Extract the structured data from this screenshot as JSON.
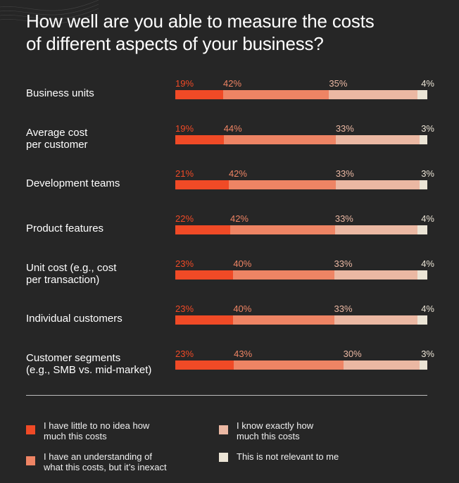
{
  "title_lines": [
    "How well are you able to measure the costs",
    "of different aspects of your business?"
  ],
  "colors": {
    "background": "#262626",
    "little_idea": "#f04a26",
    "understanding": "#ee8464",
    "exactly": "#ebb8a3",
    "not_relevant": "#ebe4d5"
  },
  "legend": [
    {
      "key": "little_idea",
      "lines": [
        "I have little to no idea how",
        "much this costs"
      ]
    },
    {
      "key": "exactly",
      "lines": [
        "I know exactly how",
        "much this costs"
      ]
    },
    {
      "key": "understanding",
      "lines": [
        "I have an understanding of",
        "what this costs, but it’s inexact"
      ]
    },
    {
      "key": "not_relevant",
      "lines": [
        "This is not relevant to me"
      ]
    }
  ],
  "chart_data": {
    "type": "bar",
    "orientation": "horizontal",
    "stacked": true,
    "title": "How well are you able to measure the costs of different aspects of your business?",
    "categories": [
      [
        "Business units"
      ],
      [
        "Average cost",
        "per customer"
      ],
      [
        "Development teams"
      ],
      [
        "Product features"
      ],
      [
        "Unit cost (e.g., cost",
        "per transaction)"
      ],
      [
        "Individual customers"
      ],
      [
        "Customer segments",
        "(e.g., SMB vs. mid-market)"
      ]
    ],
    "series": [
      {
        "name": "I have little to no idea how much this costs",
        "key": "little_idea",
        "values": [
          19,
          19,
          21,
          22,
          23,
          23,
          23
        ],
        "labels": [
          "19%",
          "19%",
          "21%",
          "22%",
          "23%",
          "23%",
          "23%"
        ]
      },
      {
        "name": "I have an understanding of what this costs, but it’s inexact",
        "key": "understanding",
        "values": [
          42,
          44,
          42,
          42,
          40,
          40,
          43
        ],
        "labels": [
          "42%",
          "44%",
          "42%",
          "42%",
          "40%",
          "40%",
          "43%"
        ]
      },
      {
        "name": "I know exactly how much this costs",
        "key": "exactly",
        "values": [
          35,
          33,
          33,
          33,
          33,
          33,
          30
        ],
        "labels": [
          "35%",
          "33%",
          "33%",
          "33%",
          "33%",
          "33%",
          "30%"
        ]
      },
      {
        "name": "This is not relevant to me",
        "key": "not_relevant",
        "values": [
          4,
          3,
          3,
          4,
          4,
          4,
          3
        ],
        "labels": [
          "4%",
          "3%",
          "3%",
          "4%",
          "4%",
          "4%",
          "3%"
        ]
      }
    ],
    "xlim": [
      0,
      100
    ],
    "grid": false,
    "legend_position": "bottom"
  }
}
